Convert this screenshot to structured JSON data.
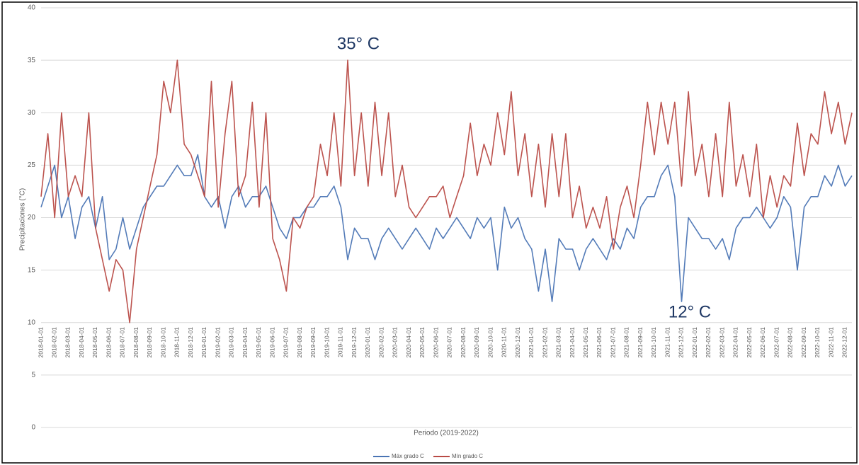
{
  "chart_data": {
    "type": "line",
    "y_label": "Precipitaciones (°C)",
    "x_label": "Periodo (2019-2022)",
    "annotations": [
      "35° C",
      "12° C"
    ],
    "categories": [
      "2018-01-01",
      null,
      "2018-02-01",
      null,
      "2018-03-01",
      null,
      "2018-04-01",
      null,
      "2018-05-01",
      null,
      "2018-06-01",
      null,
      "2018-07-01",
      null,
      "2018-08-01",
      null,
      "2018-09-01",
      null,
      "2018-10-01",
      null,
      "2018-11-01",
      null,
      "2018-12-01",
      null,
      "2019-01-01",
      null,
      "2019-02-01",
      null,
      "2019-03-01",
      null,
      "2019-04-01",
      null,
      "2019-05-01",
      null,
      "2019-06-01",
      null,
      "2019-07-01",
      null,
      "2019-08-01",
      null,
      "2019-09-01",
      null,
      "2019-10-01",
      null,
      "2019-11-01",
      null,
      "2019-12-01",
      null,
      "2020-01-01",
      null,
      "2020-02-01",
      null,
      "2020-03-01",
      null,
      "2020-04-01",
      null,
      "2020-05-01",
      null,
      "2020-06-01",
      null,
      "2020-07-01",
      null,
      "2020-08-01",
      null,
      "2020-09-01",
      null,
      "2020-10-01",
      null,
      "2020-11-01",
      null,
      "2020-12-01",
      null,
      "2021-01-01",
      null,
      "2021-02-01",
      null,
      "2021-03-01",
      null,
      "2021-04-01",
      null,
      "2021-05-01",
      null,
      "2021-06-01",
      null,
      "2021-07-01",
      null,
      "2021-08-01",
      null,
      "2021-09-01",
      null,
      "2021-10-01",
      null,
      "2021-11-01",
      null,
      "2021-12-01",
      null,
      "2022-01-01",
      null,
      "2022-02-01",
      null,
      "2022-03-01",
      null,
      "2022-04-01",
      null,
      "2022-05-01",
      null,
      "2022-06-01",
      null,
      "2022-07-01",
      null,
      "2022-08-01",
      null,
      "2022-09-01",
      null,
      "2022-10-01",
      null,
      "2022-11-01",
      null,
      "2022-12-01",
      null
    ],
    "series": [
      {
        "name": "Máx grado C",
        "color": "#4a74b4",
        "values": [
          21,
          23,
          25,
          20,
          22,
          18,
          21,
          22,
          19,
          22,
          16,
          17,
          20,
          17,
          19,
          21,
          22,
          23,
          23,
          24,
          25,
          24,
          24,
          26,
          22,
          21,
          22,
          19,
          22,
          23,
          21,
          22,
          22,
          23,
          21,
          19,
          18,
          20,
          20,
          21,
          21,
          22,
          22,
          23,
          21,
          16,
          19,
          18,
          18,
          16,
          18,
          19,
          18,
          17,
          18,
          19,
          18,
          17,
          19,
          18,
          19,
          20,
          19,
          18,
          20,
          19,
          20,
          15,
          21,
          19,
          20,
          18,
          17,
          13,
          17,
          12,
          18,
          17,
          17,
          15,
          17,
          18,
          17,
          16,
          18,
          17,
          19,
          18,
          21,
          22,
          22,
          24,
          25,
          22,
          12,
          20,
          19,
          18,
          18,
          17,
          18,
          16,
          19,
          20,
          20,
          21,
          20,
          19,
          20,
          22,
          21,
          15,
          21,
          22,
          22,
          24,
          23,
          25,
          23,
          24
        ]
      },
      {
        "name": "Mín grado C",
        "color": "#b84a45",
        "values": [
          22,
          28,
          20,
          30,
          22,
          24,
          22,
          30,
          19,
          16,
          13,
          16,
          15,
          10,
          17,
          20,
          23,
          26,
          33,
          30,
          35,
          27,
          26,
          24,
          22,
          33,
          21,
          28,
          33,
          22,
          24,
          31,
          21,
          30,
          18,
          16,
          13,
          20,
          19,
          21,
          22,
          27,
          24,
          30,
          23,
          35,
          24,
          30,
          23,
          31,
          24,
          30,
          22,
          25,
          21,
          20,
          21,
          22,
          22,
          23,
          20,
          22,
          24,
          29,
          24,
          27,
          25,
          30,
          26,
          32,
          24,
          28,
          22,
          27,
          21,
          28,
          22,
          28,
          20,
          23,
          19,
          21,
          19,
          22,
          17,
          21,
          23,
          20,
          25,
          31,
          26,
          31,
          27,
          31,
          23,
          32,
          24,
          27,
          22,
          28,
          22,
          31,
          23,
          26,
          22,
          27,
          20,
          24,
          21,
          24,
          23,
          29,
          24,
          28,
          27,
          32,
          28,
          31,
          27,
          30
        ]
      }
    ],
    "ylim": [
      0,
      40
    ],
    "yticks": [
      0,
      5,
      10,
      15,
      20,
      25,
      30,
      35,
      40
    ],
    "grid": true,
    "legend": "bottom"
  }
}
